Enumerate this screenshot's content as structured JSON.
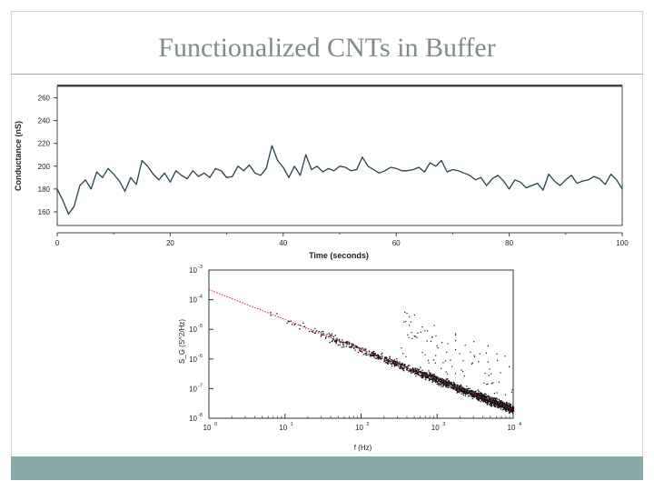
{
  "slide": {
    "title": "Functionalized CNTs in Buffer",
    "accent_color": "#88a9a9",
    "title_color": "#7f8c8d"
  },
  "chart_data": [
    {
      "type": "line",
      "xlabel": "Time (seconds)",
      "ylabel": "Conductance (nS)",
      "xlim": [
        0,
        100
      ],
      "ylim": [
        148,
        270
      ],
      "xticks": [
        0,
        20,
        40,
        60,
        80,
        100
      ],
      "yticks": [
        160,
        180,
        200,
        220,
        240,
        260
      ],
      "grid": false,
      "line_color": "#24434c",
      "series": [
        {
          "x": [
            0,
            1,
            2,
            3,
            4,
            5,
            6,
            7,
            8,
            9,
            10,
            11,
            12,
            13,
            14,
            15,
            16,
            17,
            18,
            19,
            20,
            21,
            22,
            23,
            24,
            25,
            26,
            27,
            28,
            29,
            30,
            31,
            32,
            33,
            34,
            35,
            36,
            37,
            38,
            39,
            40,
            41,
            42,
            43,
            44,
            45,
            46,
            47,
            48,
            49,
            50,
            51,
            52,
            53,
            54,
            55,
            56,
            57,
            58,
            59,
            60,
            61,
            62,
            63,
            64,
            65,
            66,
            67,
            68,
            69,
            70,
            71,
            72,
            73,
            74,
            75,
            76,
            77,
            78,
            79,
            80,
            81,
            82,
            83,
            84,
            85,
            86,
            87,
            88,
            89,
            90,
            91,
            92,
            93,
            94,
            95,
            96,
            97,
            98,
            99,
            100
          ],
          "values": [
            180,
            170,
            158,
            165,
            183,
            188,
            180,
            195,
            190,
            198,
            193,
            187,
            178,
            190,
            184,
            205,
            200,
            193,
            188,
            194,
            186,
            196,
            192,
            189,
            196,
            191,
            194,
            190,
            198,
            196,
            190,
            191,
            200,
            196,
            201,
            194,
            192,
            198,
            218,
            205,
            199,
            190,
            200,
            192,
            210,
            197,
            200,
            195,
            198,
            196,
            200,
            199,
            196,
            197,
            208,
            200,
            197,
            194,
            196,
            199,
            198,
            196,
            196,
            197,
            199,
            195,
            203,
            200,
            205,
            195,
            197,
            196,
            194,
            192,
            188,
            190,
            183,
            189,
            192,
            187,
            180,
            188,
            186,
            181,
            183,
            185,
            179,
            193,
            187,
            183,
            188,
            192,
            185,
            187,
            188,
            191,
            189,
            184,
            193,
            188,
            180
          ]
        }
      ]
    },
    {
      "type": "scatter",
      "xlabel": "f (Hz)",
      "ylabel": "S_G (S^2/Hz)",
      "xscale": "log",
      "yscale": "log",
      "xlim": [
        1,
        10000
      ],
      "ylim": [
        1e-08,
        0.001
      ],
      "xtick_labels": [
        "10",
        "10",
        "10",
        "10",
        "10"
      ],
      "xtick_exponents": [
        "0",
        "1",
        "2",
        "3",
        "4"
      ],
      "ytick_labels": [
        "10",
        "10",
        "10",
        "10",
        "10",
        "10"
      ],
      "ytick_exponents": [
        "-3",
        "-4",
        "-5",
        "-6",
        "-7",
        "-8"
      ],
      "fit_line": {
        "color": "#cc2222",
        "from": [
          1,
          0.00022
        ],
        "to": [
          10000,
          2e-08
        ]
      },
      "points_color": "#111111"
    }
  ]
}
